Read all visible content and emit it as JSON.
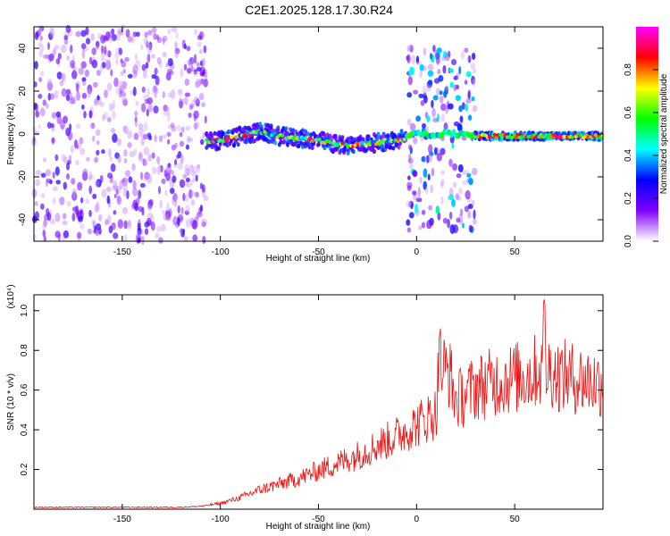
{
  "title": "C2E1.2025.128.17.30.R24",
  "chart_data": [
    {
      "type": "heatmap",
      "name": "spectrogram",
      "xlabel": "Height of straight line (km)",
      "ylabel": "Frequency (Hz)",
      "xlim": [
        -195,
        95
      ],
      "ylim": [
        -50,
        50
      ],
      "xticks": [
        -150,
        -100,
        -50,
        0,
        50
      ],
      "yticks": [
        -40,
        -20,
        0,
        20,
        40
      ],
      "colorbar": {
        "label": "Normalized spectral amplitude",
        "range": [
          0.0,
          1.0
        ],
        "ticks": [
          "0.0",
          "0.2",
          "0.4",
          "0.6",
          "0.8"
        ],
        "colormap": [
          "#ffffff",
          "#8000ff",
          "#0000ff",
          "#00ffff",
          "#00ff00",
          "#ffff00",
          "#ff0000",
          "#ff00ff"
        ]
      },
      "regions": [
        {
          "x": [
            -195,
            -107
          ],
          "f": [
            -50,
            50
          ],
          "pattern": "noise",
          "amplitude": [
            0.05,
            0.25
          ]
        },
        {
          "x": [
            -107,
            -5
          ],
          "f": [
            -6,
            4
          ],
          "pattern": "narrow band",
          "amplitude": [
            0.3,
            0.95
          ]
        },
        {
          "x": [
            -5,
            30
          ],
          "f": [
            -45,
            40
          ],
          "pattern": "noise with band at 0 Hz",
          "amplitude": [
            0.05,
            0.5
          ]
        },
        {
          "x": [
            30,
            95
          ],
          "f": [
            -3,
            1
          ],
          "pattern": "narrow band",
          "amplitude": [
            0.5,
            0.95
          ]
        }
      ],
      "band_center": [
        {
          "x": -115,
          "f": -4
        },
        {
          "x": -100,
          "f": -3
        },
        {
          "x": -90,
          "f": -1
        },
        {
          "x": -80,
          "f": 1
        },
        {
          "x": -70,
          "f": -1
        },
        {
          "x": -60,
          "f": -2
        },
        {
          "x": -50,
          "f": -3
        },
        {
          "x": -40,
          "f": -5
        },
        {
          "x": -30,
          "f": -5
        },
        {
          "x": -20,
          "f": -4
        },
        {
          "x": -10,
          "f": -3
        },
        {
          "x": 0,
          "f": 0
        },
        {
          "x": 30,
          "f": -1
        },
        {
          "x": 60,
          "f": -1
        },
        {
          "x": 95,
          "f": -1
        }
      ]
    },
    {
      "type": "line",
      "name": "snr",
      "xlabel": "Height of straight line (km)",
      "ylabel": "SNR (10 * v/v)",
      "multiplier": "(x10⁴)",
      "xlim": [
        -195,
        95
      ],
      "ylim": [
        0,
        1.08
      ],
      "xticks": [
        -150,
        -100,
        -50,
        0,
        50
      ],
      "yticks": [
        0.2,
        0.4,
        0.6,
        0.8,
        1.0
      ],
      "color": "#ee1111",
      "series": [
        {
          "x": [
            -195,
            -180,
            -160,
            -140,
            -120,
            -110,
            -100,
            -90,
            -80,
            -70,
            -60,
            -50,
            -40,
            -30,
            -20,
            -10,
            0,
            10,
            12,
            20,
            30,
            40,
            50,
            60,
            65,
            70,
            80,
            95
          ],
          "values": [
            0.01,
            0.01,
            0.01,
            0.01,
            0.01,
            0.015,
            0.03,
            0.06,
            0.1,
            0.13,
            0.16,
            0.2,
            0.24,
            0.28,
            0.33,
            0.38,
            0.44,
            0.5,
            0.92,
            0.56,
            0.63,
            0.66,
            0.68,
            0.7,
            1.06,
            0.7,
            0.68,
            0.65
          ]
        }
      ]
    }
  ]
}
